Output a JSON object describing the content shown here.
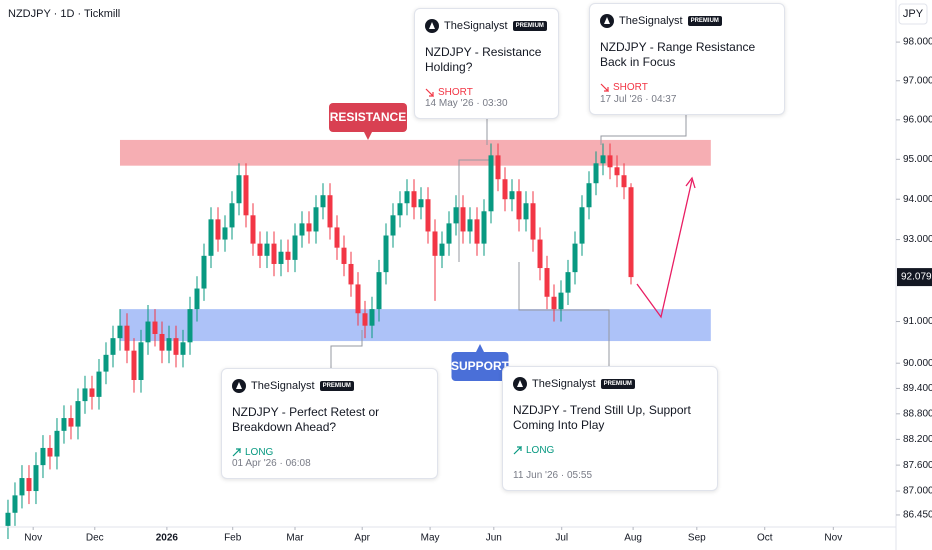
{
  "chart_data": {
    "type": "candlestick",
    "title": "NZDJPY · 1D · Tickmill",
    "y_unit": "JPY",
    "log_scale": true,
    "grid": false,
    "up_color": "#089981",
    "down_color": "#f23645",
    "open": [
      86.2,
      86.5,
      86.9,
      87.3,
      87.0,
      87.6,
      88.0,
      87.8,
      88.4,
      88.7,
      88.5,
      89.1,
      89.4,
      89.2,
      89.8,
      90.2,
      90.6,
      90.9,
      90.3,
      89.6,
      90.5,
      91.0,
      90.7,
      90.3,
      90.6,
      90.2,
      90.5,
      91.3,
      91.8,
      92.6,
      93.5,
      93.0,
      93.3,
      93.9,
      94.6,
      93.6,
      92.9,
      92.6,
      92.9,
      92.4,
      92.7,
      92.5,
      93.1,
      93.4,
      93.2,
      93.8,
      94.1,
      93.3,
      92.8,
      92.4,
      91.9,
      91.2,
      90.9,
      91.3,
      92.2,
      93.1,
      93.6,
      93.9,
      94.2,
      93.8,
      94.0,
      93.2,
      92.6,
      92.9,
      93.4,
      93.8,
      93.2,
      93.5,
      92.9,
      93.7,
      95.1,
      94.5,
      94.0,
      94.2,
      93.5,
      93.9,
      93.0,
      92.3,
      91.6,
      91.3,
      91.7,
      92.2,
      92.9,
      93.8,
      94.4,
      94.9,
      95.1,
      94.8,
      94.6,
      94.3
    ],
    "high": [
      86.8,
      87.2,
      87.6,
      87.6,
      87.9,
      88.3,
      88.3,
      88.7,
      89.0,
      89.0,
      89.4,
      89.7,
      89.7,
      90.1,
      90.5,
      90.9,
      91.3,
      91.2,
      90.6,
      90.8,
      91.4,
      91.3,
      91.0,
      90.9,
      90.9,
      90.8,
      91.6,
      92.1,
      92.9,
      93.8,
      93.8,
      93.6,
      94.2,
      94.9,
      94.9,
      93.9,
      93.2,
      93.2,
      93.2,
      93.0,
      93.0,
      93.4,
      93.7,
      93.7,
      94.1,
      94.4,
      94.4,
      93.6,
      93.1,
      92.7,
      92.2,
      91.5,
      91.6,
      92.5,
      93.4,
      93.9,
      94.2,
      94.5,
      94.5,
      94.3,
      94.3,
      93.5,
      93.2,
      93.7,
      94.1,
      94.1,
      93.8,
      93.8,
      94.0,
      95.4,
      95.4,
      94.8,
      94.5,
      94.5,
      94.2,
      94.2,
      93.3,
      92.6,
      91.9,
      92.0,
      92.5,
      93.2,
      94.1,
      94.7,
      95.2,
      95.4,
      95.4,
      95.1,
      94.9,
      94.4
    ],
    "low": [
      85.9,
      86.2,
      86.6,
      86.7,
      86.7,
      87.3,
      87.5,
      87.5,
      88.1,
      88.2,
      88.2,
      88.8,
      88.9,
      88.9,
      89.5,
      89.9,
      90.3,
      90.0,
      89.3,
      89.3,
      90.2,
      90.4,
      90.0,
      90.0,
      89.9,
      89.9,
      90.2,
      91.0,
      91.5,
      92.3,
      92.7,
      92.7,
      93.0,
      93.6,
      93.3,
      92.6,
      92.3,
      92.3,
      92.1,
      92.1,
      92.2,
      92.2,
      92.8,
      92.9,
      92.9,
      93.5,
      93.0,
      92.5,
      92.1,
      91.6,
      90.9,
      90.6,
      90.6,
      91.0,
      91.9,
      92.8,
      93.3,
      93.6,
      93.5,
      93.5,
      92.9,
      91.5,
      92.3,
      92.6,
      93.1,
      92.9,
      92.9,
      92.6,
      92.6,
      93.4,
      94.2,
      93.7,
      93.7,
      93.2,
      93.2,
      92.7,
      92.0,
      91.3,
      91.0,
      91.0,
      91.4,
      91.9,
      92.6,
      93.5,
      94.1,
      94.6,
      94.5,
      94.3,
      94.0,
      91.9
    ],
    "close": [
      86.5,
      86.9,
      87.3,
      87.0,
      87.6,
      88.0,
      87.8,
      88.4,
      88.7,
      88.5,
      89.1,
      89.4,
      89.2,
      89.8,
      90.2,
      90.6,
      90.9,
      90.3,
      89.6,
      90.5,
      91.0,
      90.7,
      90.3,
      90.6,
      90.2,
      90.5,
      91.3,
      91.8,
      92.6,
      93.5,
      93.0,
      93.3,
      93.9,
      94.6,
      93.6,
      92.9,
      92.6,
      92.9,
      92.4,
      92.7,
      92.5,
      93.1,
      93.4,
      93.2,
      93.8,
      94.1,
      93.3,
      92.8,
      92.4,
      91.9,
      91.2,
      90.9,
      91.3,
      92.2,
      93.1,
      93.6,
      93.9,
      94.2,
      93.8,
      94.0,
      93.2,
      92.6,
      92.9,
      93.4,
      93.8,
      93.2,
      93.5,
      92.9,
      93.7,
      95.1,
      94.5,
      94.0,
      94.2,
      93.5,
      93.9,
      93.0,
      92.3,
      91.6,
      91.3,
      91.7,
      92.2,
      92.9,
      93.8,
      94.4,
      94.9,
      95.1,
      94.8,
      94.6,
      94.3,
      92.079
    ],
    "last_price": 92.079,
    "ylim": [
      86.22,
      99.1
    ],
    "yticks": [
      {
        "value": 98,
        "label": "98.000"
      },
      {
        "value": 97,
        "label": "97.000"
      },
      {
        "value": 96,
        "label": "96.000"
      },
      {
        "value": 95,
        "label": "95.000"
      },
      {
        "value": 94,
        "label": "94.000"
      },
      {
        "value": 93,
        "label": "93.000"
      },
      {
        "value": 91,
        "label": "91.000"
      },
      {
        "value": 90,
        "label": "90.000"
      },
      {
        "value": 89.4,
        "label": "89.400"
      },
      {
        "value": 88.8,
        "label": "88.800"
      },
      {
        "value": 88.2,
        "label": "88.200"
      },
      {
        "value": 87.6,
        "label": "87.600"
      },
      {
        "value": 87,
        "label": "87.000"
      },
      {
        "value": 86.45,
        "label": "86.450"
      }
    ],
    "xlim": [
      -1.14,
      126.71
    ],
    "xticks": [
      {
        "value": 3.6,
        "label": "Nov"
      },
      {
        "value": 12.4,
        "label": "Dec"
      },
      {
        "value": 22.7,
        "label": "2026"
      },
      {
        "value": 32.1,
        "label": "Feb"
      },
      {
        "value": 41,
        "label": "Mar"
      },
      {
        "value": 50.6,
        "label": "Apr"
      },
      {
        "value": 60.3,
        "label": "May"
      },
      {
        "value": 69.4,
        "label": "Jun"
      },
      {
        "value": 79.1,
        "label": "Jul"
      },
      {
        "value": 89.3,
        "label": "Aug"
      },
      {
        "value": 98.4,
        "label": "Sep"
      },
      {
        "value": 108.1,
        "label": "Oct"
      },
      {
        "value": 117.9,
        "label": "Nov"
      }
    ],
    "zones": [
      {
        "label": "RESISTANCE",
        "range": [
          94.84,
          95.49
        ],
        "xrange": [
          16,
          100.4
        ],
        "color": "#f28b93",
        "label_color": "#d94052"
      },
      {
        "label": "SUPPORT",
        "range": [
          90.53,
          91.3
        ],
        "xrange": [
          16,
          100.4
        ],
        "color": "#8aa8f5",
        "label_color": "#4a6fd8"
      }
    ]
  },
  "ideas": [
    {
      "author": "TheSignalyst",
      "badge": "PREMIUM",
      "title": "NZDJPY - Resistance Holding?",
      "direction": "SHORT",
      "date": "14 May '26 · 03:30"
    },
    {
      "author": "TheSignalyst",
      "badge": "PREMIUM",
      "title": "NZDJPY - Range Resistance Back in Focus",
      "direction": "SHORT",
      "date": "17 Jul '26 · 04:37"
    },
    {
      "author": "TheSignalyst",
      "badge": "PREMIUM",
      "title": "NZDJPY - Perfect Retest or Breakdown Ahead?",
      "direction": "LONG",
      "date": "01 Apr '26 · 06:08"
    },
    {
      "author": "TheSignalyst",
      "badge": "PREMIUM",
      "title": "NZDJPY - Trend Still Up, Support Coming Into Play",
      "direction": "LONG",
      "date": "11 Jun '26 · 05:55"
    }
  ]
}
